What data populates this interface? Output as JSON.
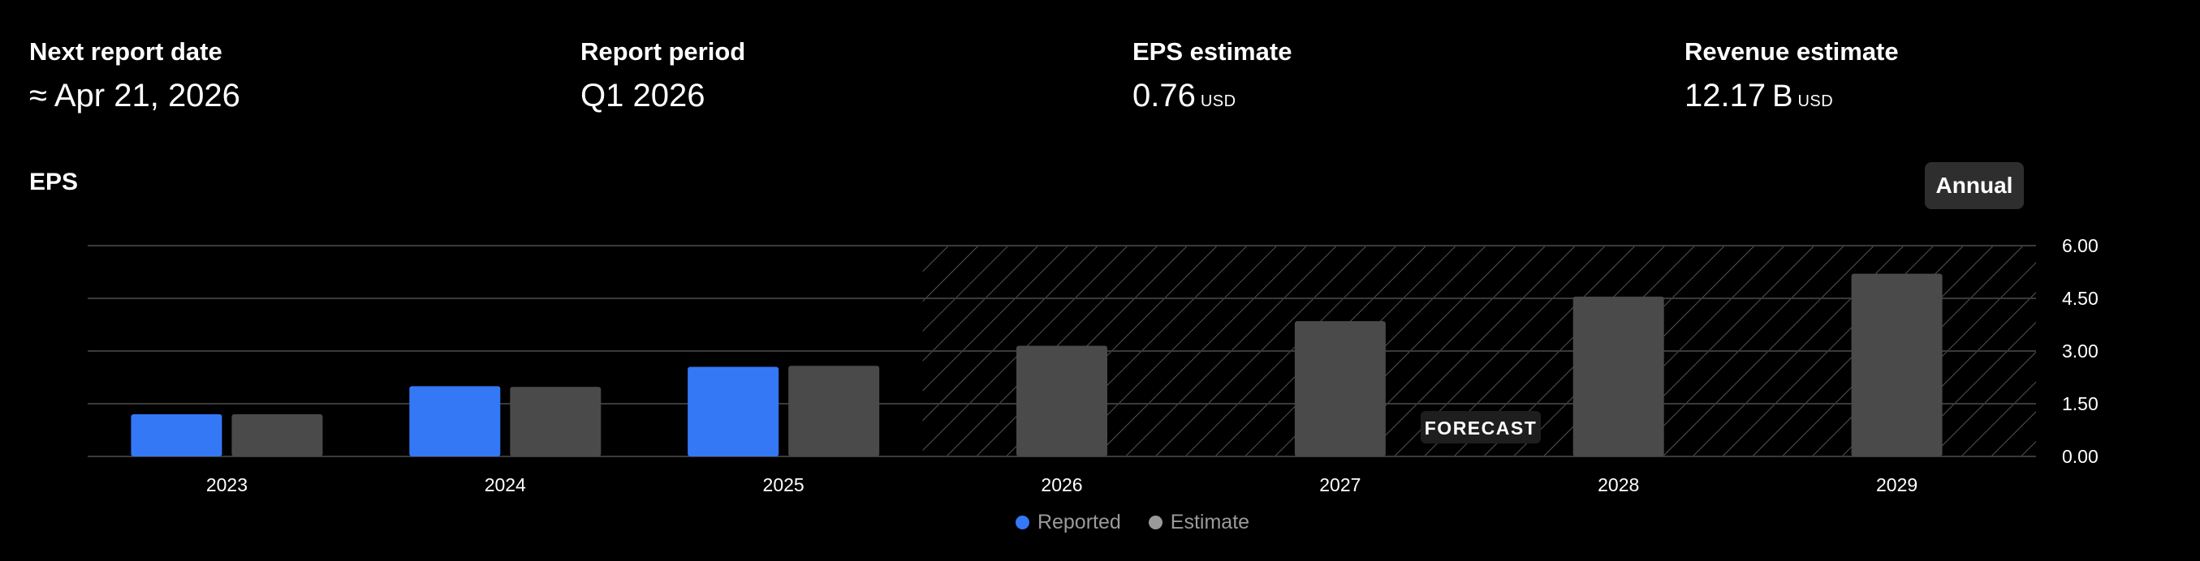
{
  "stats": [
    {
      "label": "Next report date",
      "value": "≈ Apr 21, 2026",
      "suffix": "",
      "unit": ""
    },
    {
      "label": "Report period",
      "value": "Q1 2026",
      "suffix": "",
      "unit": ""
    },
    {
      "label": "EPS estimate",
      "value": "0.76",
      "suffix": "",
      "unit": "USD"
    },
    {
      "label": "Revenue estimate",
      "value": "12.17",
      "suffix": "B",
      "unit": "USD"
    }
  ],
  "section": {
    "title": "EPS"
  },
  "period_toggle": {
    "label": "Annual"
  },
  "forecast_label": "FORECAST",
  "legend": {
    "reported": "Reported",
    "estimate": "Estimate"
  },
  "colors": {
    "reported": "#3478f6",
    "estimate": "#4a4a4a",
    "grid": "#3a3a3a",
    "axis_text": "#ffffff"
  },
  "chart_data": {
    "type": "bar",
    "title": "EPS",
    "xlabel": "",
    "ylabel": "",
    "categories": [
      "2023",
      "2024",
      "2025",
      "2026",
      "2027",
      "2028",
      "2029"
    ],
    "series": [
      {
        "name": "Reported",
        "values": [
          1.2,
          2.0,
          2.55,
          null,
          null,
          null,
          null
        ]
      },
      {
        "name": "Estimate",
        "values": [
          1.2,
          1.98,
          2.58,
          3.15,
          3.85,
          4.55,
          5.2
        ]
      }
    ],
    "yticks": [
      "0.00",
      "1.50",
      "3.00",
      "4.50",
      "6.00"
    ],
    "ylim": [
      0,
      6
    ],
    "forecast_start_category": "2026",
    "grid": true,
    "legend_position": "bottom"
  }
}
